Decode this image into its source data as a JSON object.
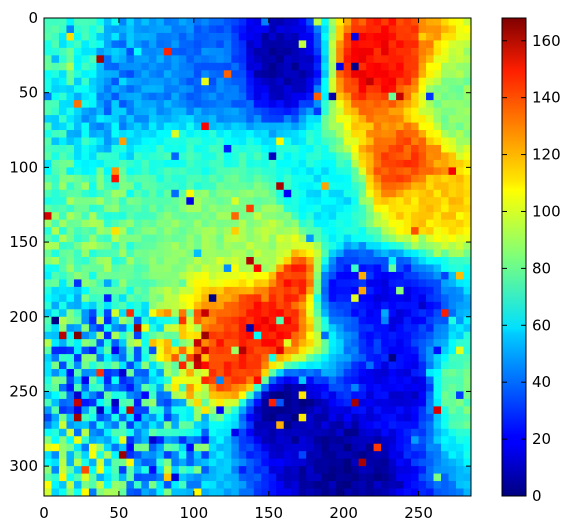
{
  "chart_data": {
    "type": "heatmap",
    "title": "",
    "xlabel": "",
    "ylabel": "",
    "colormap": "jet",
    "xlim": [
      0,
      285
    ],
    "ylim": [
      320,
      0
    ],
    "x_ticks": [
      0,
      50,
      100,
      150,
      200,
      250
    ],
    "y_ticks": [
      0,
      50,
      100,
      150,
      200,
      250,
      300
    ],
    "colorbar": {
      "range": [
        0,
        168
      ],
      "ticks": [
        0,
        20,
        40,
        60,
        80,
        100,
        120,
        140,
        160
      ]
    },
    "grid": false,
    "regions": [
      {
        "name": "upper-left-green-cyan",
        "x": [
          0,
          60
        ],
        "y": [
          0,
          320
        ],
        "value": 72
      },
      {
        "name": "upper-left-blue",
        "x": [
          30,
          185
        ],
        "y": [
          0,
          110
        ],
        "value": 42
      },
      {
        "name": "top-center-dark-blue",
        "x": [
          150,
          200
        ],
        "y": [
          0,
          60
        ],
        "value": 8
      },
      {
        "name": "top-right-orange-red",
        "x": [
          175,
          265
        ],
        "y": [
          0,
          150
        ],
        "value": 140
      },
      {
        "name": "right-yellow",
        "x": [
          215,
          275
        ],
        "y": [
          60,
          170
        ],
        "value": 115
      },
      {
        "name": "right-edge-green",
        "x": [
          270,
          285
        ],
        "y": [
          0,
          320
        ],
        "value": 85
      },
      {
        "name": "center-green",
        "x": [
          60,
          175
        ],
        "y": [
          100,
          200
        ],
        "value": 85
      },
      {
        "name": "center-red-orange",
        "x": [
          110,
          200
        ],
        "y": [
          130,
          230
        ],
        "value": 140
      },
      {
        "name": "middle-right-blue",
        "x": [
          195,
          280
        ],
        "y": [
          140,
          300
        ],
        "value": 25
      },
      {
        "name": "bottom-dark-blue",
        "x": [
          90,
          270
        ],
        "y": [
          210,
          320
        ],
        "value": 5
      },
      {
        "name": "bottom-left-mixed",
        "x": [
          0,
          110
        ],
        "y": [
          200,
          320
        ],
        "value": 50
      }
    ]
  }
}
